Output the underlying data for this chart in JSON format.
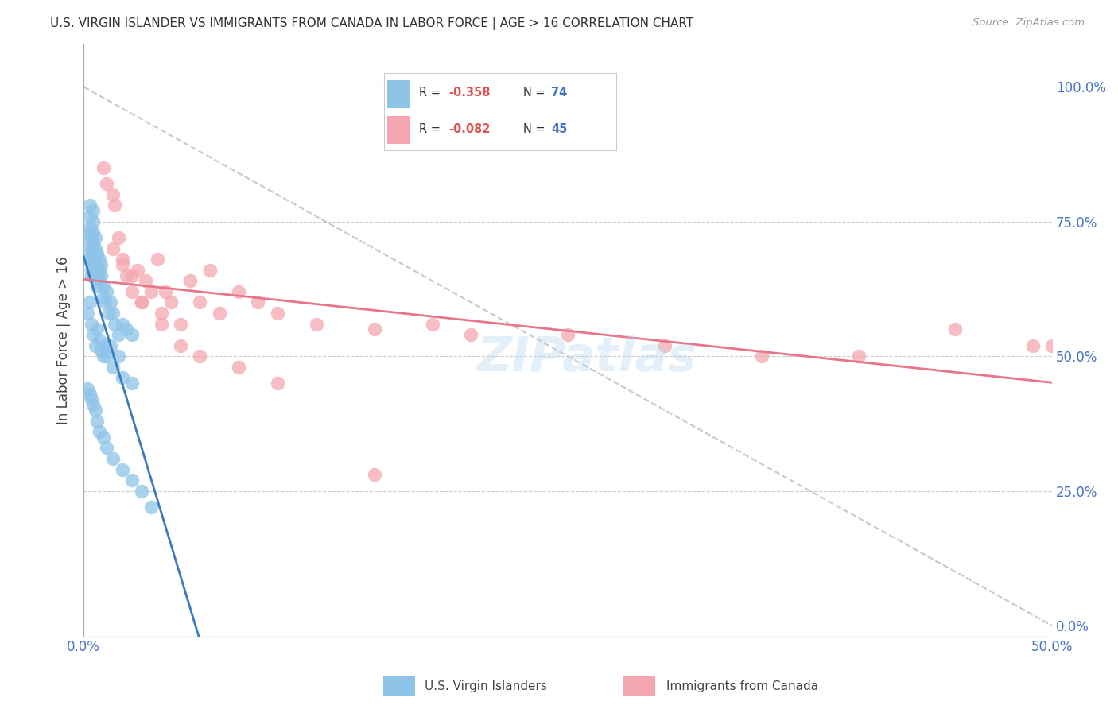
{
  "title": "U.S. VIRGIN ISLANDER VS IMMIGRANTS FROM CANADA IN LABOR FORCE | AGE > 16 CORRELATION CHART",
  "source": "Source: ZipAtlas.com",
  "ylabel": "In Labor Force | Age > 16",
  "yaxis_labels": [
    "0.0%",
    "25.0%",
    "50.0%",
    "75.0%",
    "100.0%"
  ],
  "yaxis_values": [
    0.0,
    0.25,
    0.5,
    0.75,
    1.0
  ],
  "xlim": [
    0.0,
    0.5
  ],
  "ylim": [
    -0.02,
    1.08
  ],
  "legend1_R": "-0.358",
  "legend1_N": "74",
  "legend2_R": "-0.082",
  "legend2_N": "45",
  "blue_color": "#8ec4e8",
  "pink_color": "#f4a7b0",
  "blue_line_color": "#3a7bbf",
  "pink_line_color": "#e8748a",
  "dashed_line_color": "#bbbbbb",
  "watermark": "ZIPatlas",
  "blue_x": [
    0.002,
    0.002,
    0.003,
    0.003,
    0.003,
    0.003,
    0.003,
    0.004,
    0.004,
    0.004,
    0.004,
    0.004,
    0.005,
    0.005,
    0.005,
    0.005,
    0.005,
    0.005,
    0.005,
    0.006,
    0.006,
    0.006,
    0.006,
    0.007,
    0.007,
    0.007,
    0.007,
    0.008,
    0.008,
    0.008,
    0.009,
    0.009,
    0.01,
    0.01,
    0.011,
    0.012,
    0.013,
    0.014,
    0.015,
    0.016,
    0.018,
    0.02,
    0.022,
    0.025,
    0.002,
    0.003,
    0.004,
    0.005,
    0.006,
    0.007,
    0.008,
    0.009,
    0.01,
    0.011,
    0.012,
    0.014,
    0.015,
    0.018,
    0.02,
    0.025,
    0.002,
    0.003,
    0.004,
    0.005,
    0.006,
    0.007,
    0.008,
    0.01,
    0.012,
    0.015,
    0.02,
    0.025,
    0.03,
    0.035
  ],
  "blue_y": [
    0.7,
    0.68,
    0.72,
    0.74,
    0.76,
    0.78,
    0.73,
    0.7,
    0.72,
    0.68,
    0.66,
    0.65,
    0.75,
    0.77,
    0.73,
    0.71,
    0.69,
    0.67,
    0.65,
    0.72,
    0.7,
    0.68,
    0.66,
    0.69,
    0.67,
    0.65,
    0.63,
    0.68,
    0.66,
    0.64,
    0.67,
    0.65,
    0.63,
    0.61,
    0.6,
    0.62,
    0.58,
    0.6,
    0.58,
    0.56,
    0.54,
    0.56,
    0.55,
    0.54,
    0.58,
    0.6,
    0.56,
    0.54,
    0.52,
    0.55,
    0.53,
    0.51,
    0.5,
    0.52,
    0.5,
    0.52,
    0.48,
    0.5,
    0.46,
    0.45,
    0.44,
    0.43,
    0.42,
    0.41,
    0.4,
    0.38,
    0.36,
    0.35,
    0.33,
    0.31,
    0.29,
    0.27,
    0.25,
    0.22
  ],
  "pink_x": [
    0.01,
    0.012,
    0.015,
    0.016,
    0.018,
    0.02,
    0.022,
    0.025,
    0.028,
    0.03,
    0.032,
    0.035,
    0.038,
    0.04,
    0.042,
    0.045,
    0.05,
    0.055,
    0.06,
    0.065,
    0.07,
    0.08,
    0.09,
    0.1,
    0.12,
    0.15,
    0.18,
    0.2,
    0.25,
    0.3,
    0.35,
    0.4,
    0.45,
    0.49,
    0.5,
    0.015,
    0.02,
    0.025,
    0.03,
    0.04,
    0.05,
    0.06,
    0.08,
    0.1,
    0.15
  ],
  "pink_y": [
    0.85,
    0.82,
    0.8,
    0.78,
    0.72,
    0.68,
    0.65,
    0.62,
    0.66,
    0.6,
    0.64,
    0.62,
    0.68,
    0.58,
    0.62,
    0.6,
    0.56,
    0.64,
    0.6,
    0.66,
    0.58,
    0.62,
    0.6,
    0.58,
    0.56,
    0.55,
    0.56,
    0.54,
    0.54,
    0.52,
    0.5,
    0.5,
    0.55,
    0.52,
    0.52,
    0.7,
    0.67,
    0.65,
    0.6,
    0.56,
    0.52,
    0.5,
    0.48,
    0.45,
    0.28
  ]
}
